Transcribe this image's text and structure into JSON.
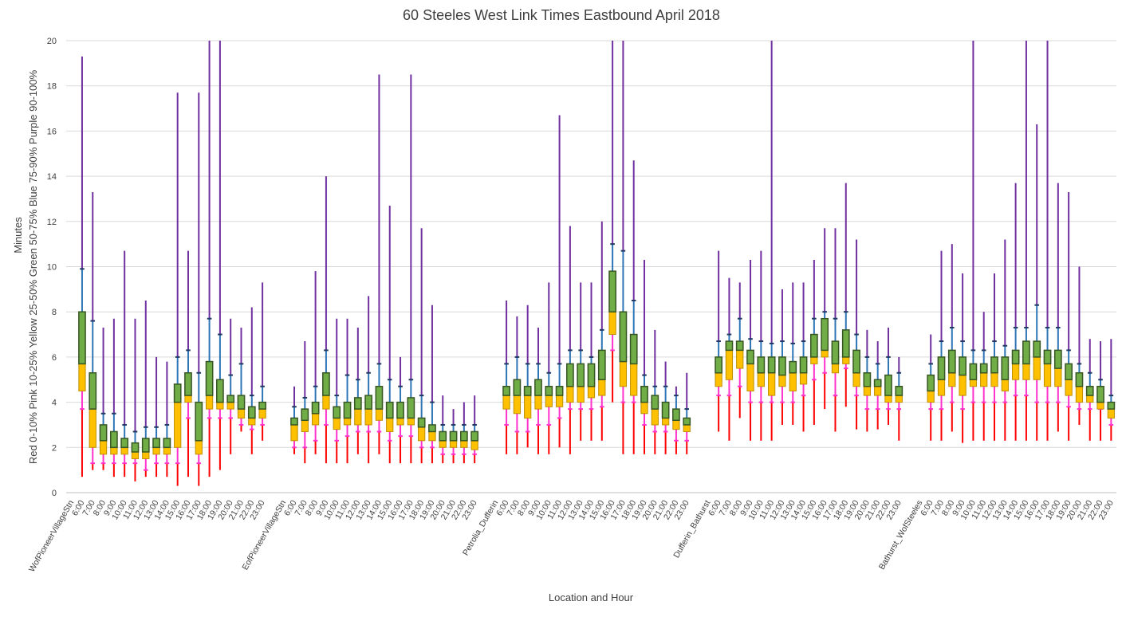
{
  "chart_data": {
    "type": "boxplot",
    "title": "60 Steeles West Link Times Eastbound April 2018",
    "xlabel": "Location and Hour",
    "ylabel": "Red 0-10%  Pink 10-25%  Yellow 25-50%  Green 50-75%  Blue 75-90%  Purple 90-100%",
    "ylabel_lines": [
      "Minutes",
      "Red 0-10%  Pink 10-25%  Yellow 25-50%  Green 50-75%  Blue 75-90%  Purple 90-100%"
    ],
    "ylim": [
      0,
      20
    ],
    "yticks": [
      0,
      2,
      4,
      6,
      8,
      10,
      12,
      14,
      16,
      18,
      20
    ],
    "grid": true,
    "colors": {
      "red": "#ff0000",
      "pink": "#ff33cc",
      "yellow": "#ffc000",
      "green": "#70ad47",
      "blue": "#2e75b6",
      "purple": "#7030a0",
      "box_outline": "#375623",
      "grid": "#d9d9d9",
      "axis": "#bfbfbf"
    },
    "hours": [
      "6:00",
      "7:00",
      "8:00",
      "9:00",
      "10:00",
      "11:00",
      "12:00",
      "13:00",
      "14:00",
      "15:00",
      "16:00",
      "17:00",
      "18:00",
      "19:00",
      "20:00",
      "21:00",
      "22:00",
      "23:00"
    ],
    "note": "Each point: [min, p10, p25, median, p75, p90, max] in minutes",
    "groups": [
      {
        "name": "WofPioneerVillageStn",
        "stats": [
          [
            0.7,
            3.7,
            4.5,
            5.7,
            8.0,
            9.9,
            19.3
          ],
          [
            1.0,
            1.3,
            2.0,
            3.7,
            5.3,
            7.6,
            13.3
          ],
          [
            1.0,
            1.3,
            1.7,
            2.3,
            3.0,
            3.5,
            7.3
          ],
          [
            0.7,
            1.3,
            1.7,
            2.0,
            2.7,
            3.5,
            7.7
          ],
          [
            0.7,
            1.3,
            1.7,
            2.0,
            2.4,
            3.0,
            10.7
          ],
          [
            0.5,
            1.3,
            1.5,
            1.8,
            2.2,
            2.7,
            7.7
          ],
          [
            0.7,
            1.0,
            1.5,
            1.8,
            2.4,
            2.9,
            8.5
          ],
          [
            0.7,
            1.3,
            1.7,
            2.0,
            2.4,
            2.9,
            6.0
          ],
          [
            0.7,
            1.3,
            1.7,
            2.0,
            2.4,
            3.0,
            5.8
          ],
          [
            0.3,
            1.3,
            2.0,
            4.0,
            4.8,
            6.0,
            17.7
          ],
          [
            0.7,
            3.3,
            4.0,
            4.3,
            5.3,
            6.3,
            10.7
          ],
          [
            0.3,
            1.3,
            1.7,
            2.3,
            4.0,
            5.3,
            17.7
          ],
          [
            0.7,
            3.3,
            3.7,
            4.3,
            5.8,
            7.7,
            20.0
          ],
          [
            1.0,
            3.3,
            3.7,
            4.0,
            5.0,
            7.0,
            20.0
          ],
          [
            1.7,
            3.3,
            3.7,
            4.0,
            4.3,
            5.2,
            7.7
          ],
          [
            2.7,
            3.0,
            3.3,
            3.7,
            4.3,
            5.7,
            7.3
          ],
          [
            1.7,
            2.8,
            3.0,
            3.3,
            3.8,
            4.3,
            8.2
          ],
          [
            2.3,
            3.0,
            3.3,
            3.7,
            4.0,
            4.7,
            9.3
          ]
        ]
      },
      {
        "name": "EofPioneerVillageStn",
        "stats": [
          [
            1.7,
            2.0,
            2.3,
            3.0,
            3.3,
            3.8,
            4.7
          ],
          [
            1.3,
            2.0,
            2.7,
            3.2,
            3.7,
            4.2,
            6.7
          ],
          [
            1.7,
            2.3,
            3.0,
            3.5,
            4.0,
            4.7,
            9.8
          ],
          [
            1.3,
            3.0,
            3.7,
            4.3,
            5.3,
            6.3,
            14.0
          ],
          [
            1.3,
            2.3,
            2.8,
            3.3,
            3.8,
            4.3,
            7.7
          ],
          [
            1.3,
            2.5,
            3.0,
            3.3,
            4.0,
            5.2,
            7.7
          ],
          [
            1.7,
            2.7,
            3.0,
            3.7,
            4.2,
            5.0,
            7.3
          ],
          [
            1.3,
            2.7,
            3.0,
            3.7,
            4.3,
            5.3,
            8.7
          ],
          [
            1.7,
            2.7,
            3.2,
            3.7,
            4.7,
            5.7,
            18.5
          ],
          [
            1.3,
            2.3,
            2.7,
            3.3,
            4.0,
            5.0,
            12.7
          ],
          [
            1.3,
            2.5,
            3.0,
            3.3,
            4.0,
            4.7,
            6.0
          ],
          [
            1.3,
            2.5,
            3.0,
            3.3,
            4.2,
            5.0,
            18.5
          ],
          [
            1.3,
            2.0,
            2.3,
            2.9,
            3.3,
            4.3,
            11.7
          ],
          [
            1.3,
            2.0,
            2.3,
            2.7,
            3.0,
            4.0,
            8.3
          ],
          [
            1.3,
            1.7,
            2.0,
            2.3,
            2.7,
            3.0,
            4.3
          ],
          [
            1.3,
            1.7,
            2.0,
            2.3,
            2.7,
            3.0,
            3.7
          ],
          [
            1.3,
            1.7,
            2.0,
            2.3,
            2.7,
            3.0,
            4.0
          ],
          [
            1.3,
            1.7,
            1.9,
            2.3,
            2.7,
            3.0,
            4.3
          ]
        ]
      },
      {
        "name": "Petrolia_Dufferin",
        "stats": [
          [
            1.7,
            3.0,
            3.7,
            4.3,
            4.7,
            5.7,
            8.5
          ],
          [
            1.7,
            2.7,
            3.5,
            4.3,
            5.0,
            6.0,
            7.8
          ],
          [
            2.0,
            2.7,
            3.3,
            4.3,
            4.7,
            5.7,
            8.3
          ],
          [
            1.7,
            3.0,
            3.7,
            4.3,
            5.0,
            5.7,
            7.3
          ],
          [
            1.7,
            3.0,
            3.8,
            4.3,
            4.7,
            5.3,
            9.3
          ],
          [
            2.0,
            3.3,
            3.8,
            4.3,
            4.7,
            5.7,
            16.7
          ],
          [
            1.7,
            3.7,
            4.0,
            4.7,
            5.7,
            6.3,
            11.8
          ],
          [
            2.3,
            3.7,
            4.0,
            4.7,
            5.7,
            6.3,
            9.3
          ],
          [
            2.3,
            3.7,
            4.2,
            4.7,
            5.7,
            6.0,
            9.3
          ],
          [
            2.3,
            3.8,
            4.3,
            5.0,
            6.3,
            7.2,
            12.0
          ],
          [
            4.0,
            6.3,
            7.0,
            8.0,
            9.8,
            11.0,
            20.0
          ],
          [
            1.7,
            4.0,
            4.7,
            5.8,
            8.0,
            10.7,
            20.0
          ],
          [
            1.7,
            4.0,
            4.3,
            5.7,
            7.0,
            8.5,
            14.7
          ],
          [
            1.7,
            3.0,
            3.5,
            4.0,
            4.7,
            5.2,
            10.3
          ],
          [
            1.7,
            2.7,
            3.0,
            3.7,
            4.3,
            4.7,
            7.2
          ],
          [
            1.7,
            2.7,
            3.0,
            3.3,
            4.0,
            4.7,
            5.8
          ],
          [
            1.7,
            2.3,
            2.8,
            3.2,
            3.7,
            4.3,
            4.7
          ],
          [
            1.7,
            2.3,
            2.7,
            3.0,
            3.3,
            3.7,
            5.3
          ]
        ]
      },
      {
        "name": "Dufferin_Bathurst",
        "stats": [
          [
            2.7,
            4.3,
            4.7,
            5.3,
            6.0,
            6.7,
            10.7
          ],
          [
            2.3,
            4.3,
            5.0,
            6.3,
            6.7,
            7.0,
            9.5
          ],
          [
            3.3,
            4.7,
            5.5,
            6.3,
            6.7,
            7.7,
            9.3
          ],
          [
            2.3,
            4.0,
            4.5,
            5.7,
            6.3,
            6.8,
            10.3
          ],
          [
            2.3,
            4.0,
            4.7,
            5.3,
            6.0,
            6.7,
            10.7
          ],
          [
            2.3,
            4.0,
            4.3,
            5.3,
            6.0,
            6.6,
            20.0
          ],
          [
            3.0,
            4.0,
            4.7,
            5.2,
            6.0,
            6.7,
            9.0
          ],
          [
            3.0,
            4.0,
            4.5,
            5.3,
            5.8,
            6.6,
            9.3
          ],
          [
            2.7,
            4.3,
            4.8,
            5.3,
            6.0,
            6.7,
            9.3
          ],
          [
            3.0,
            5.0,
            5.7,
            6.0,
            7.0,
            7.7,
            10.3
          ],
          [
            3.7,
            5.3,
            6.0,
            6.3,
            7.7,
            8.0,
            11.7
          ],
          [
            2.7,
            4.3,
            5.3,
            5.7,
            6.7,
            7.7,
            11.7
          ],
          [
            3.8,
            5.5,
            5.7,
            6.0,
            7.2,
            8.0,
            13.7
          ],
          [
            2.8,
            4.3,
            4.7,
            5.3,
            6.3,
            7.0,
            11.2
          ],
          [
            2.7,
            3.7,
            4.3,
            4.7,
            5.3,
            6.0,
            7.2
          ],
          [
            2.8,
            3.7,
            4.3,
            4.7,
            5.0,
            5.7,
            6.7
          ],
          [
            3.0,
            3.7,
            4.0,
            4.3,
            5.2,
            6.0,
            7.3
          ],
          [
            2.3,
            3.7,
            4.0,
            4.3,
            4.7,
            5.3,
            6.0
          ]
        ]
      },
      {
        "name": "Bathurst_WofSteeles",
        "stats": [
          [
            2.3,
            3.7,
            4.0,
            4.5,
            5.2,
            5.7,
            7.0
          ],
          [
            2.3,
            3.7,
            4.3,
            5.0,
            6.0,
            6.7,
            10.7
          ],
          [
            2.7,
            4.0,
            4.7,
            5.3,
            6.3,
            7.3,
            11.0
          ],
          [
            2.2,
            3.7,
            4.3,
            5.2,
            6.0,
            6.7,
            9.7
          ],
          [
            2.3,
            4.0,
            4.7,
            5.0,
            5.7,
            6.3,
            20.0
          ],
          [
            2.3,
            4.0,
            4.7,
            5.3,
            5.7,
            6.3,
            8.0
          ],
          [
            2.3,
            4.0,
            4.7,
            5.3,
            6.0,
            6.7,
            9.7
          ],
          [
            2.3,
            4.0,
            4.5,
            5.0,
            6.0,
            6.5,
            11.2
          ],
          [
            2.3,
            4.3,
            5.0,
            5.7,
            6.3,
            7.3,
            13.7
          ],
          [
            2.3,
            4.3,
            5.0,
            5.7,
            6.7,
            7.3,
            20.0
          ],
          [
            2.3,
            4.0,
            5.0,
            6.0,
            6.7,
            8.3,
            16.3
          ],
          [
            2.3,
            4.0,
            4.7,
            5.7,
            6.3,
            7.3,
            20.0
          ],
          [
            2.7,
            4.0,
            4.7,
            5.5,
            6.3,
            7.3,
            13.7
          ],
          [
            2.3,
            3.8,
            4.3,
            5.0,
            5.7,
            6.3,
            13.3
          ],
          [
            3.0,
            3.7,
            4.0,
            4.7,
            5.3,
            5.7,
            10.0
          ],
          [
            2.3,
            3.7,
            4.0,
            4.3,
            4.7,
            5.3,
            6.8
          ],
          [
            2.3,
            3.7,
            3.7,
            4.0,
            4.7,
            5.0,
            6.7
          ],
          [
            2.3,
            3.0,
            3.3,
            3.7,
            4.0,
            4.3,
            6.8
          ]
        ]
      }
    ]
  }
}
